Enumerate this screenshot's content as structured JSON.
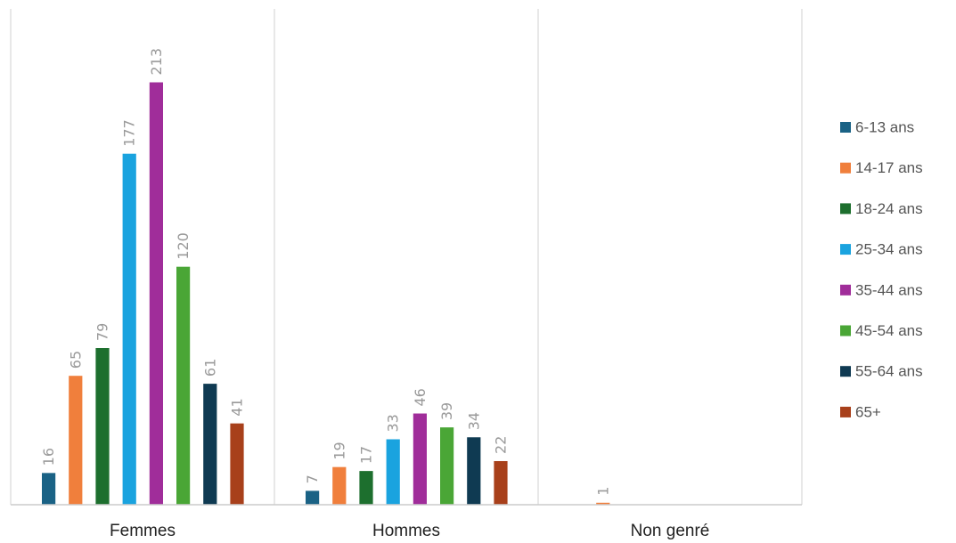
{
  "chart_data": {
    "type": "bar",
    "categories": [
      "Femmes",
      "Hommes",
      "Non genré"
    ],
    "series": [
      {
        "name": "6-13 ans",
        "color": "#1a6285",
        "values": [
          16,
          7,
          null
        ]
      },
      {
        "name": "14-17 ans",
        "color": "#f07f3c",
        "values": [
          65,
          19,
          1
        ]
      },
      {
        "name": "18-24 ans",
        "color": "#1d6f2e",
        "values": [
          79,
          17,
          null
        ]
      },
      {
        "name": "25-34 ans",
        "color": "#1aa3df",
        "values": [
          177,
          33,
          null
        ]
      },
      {
        "name": "35-44 ans",
        "color": "#a02d9a",
        "values": [
          213,
          46,
          null
        ]
      },
      {
        "name": "45-54 ans",
        "color": "#4aa636",
        "values": [
          120,
          39,
          null
        ]
      },
      {
        "name": "55-64 ans",
        "color": "#0f3a52",
        "values": [
          61,
          34,
          null
        ]
      },
      {
        "name": "65+",
        "color": "#a8401b",
        "values": [
          41,
          22,
          null
        ]
      }
    ],
    "ylim": [
      0,
      250
    ],
    "data_labels": true,
    "grid": false,
    "category_separators": true,
    "legend_position": "right",
    "data_label_rotation": "vertical"
  }
}
